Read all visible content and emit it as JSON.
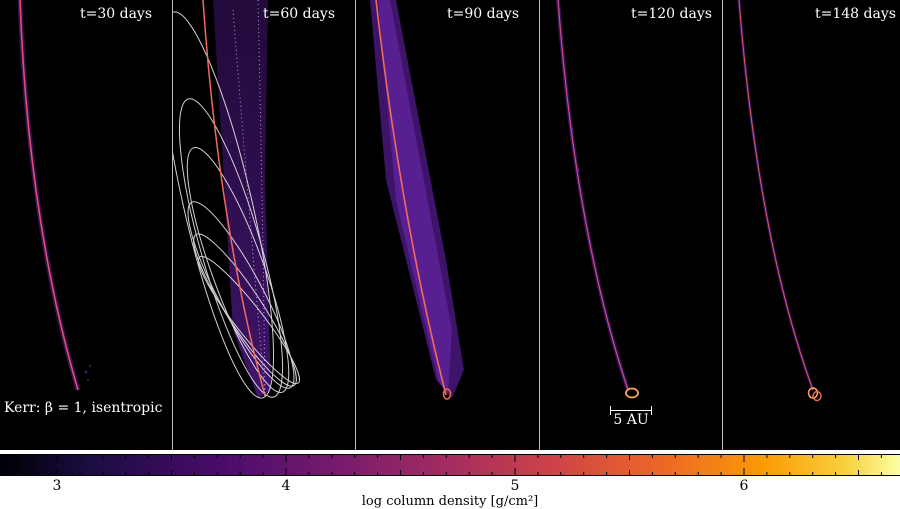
{
  "panels": [
    {
      "label": "t=30 days"
    },
    {
      "label": "t=60 days"
    },
    {
      "label": "t=90 days"
    },
    {
      "label": "t=120 days"
    },
    {
      "label": "t=148 days"
    }
  ],
  "run_label": "Kerr: β = 1, isentropic",
  "scale_bar": {
    "label": "5 AU"
  },
  "colorbar": {
    "axis_label": "log column density [g/cm²]",
    "ticks": [
      "3",
      "4",
      "5",
      "6"
    ],
    "min": 2.75,
    "max": 6.7,
    "colormap": "inferno-like (black-purple-magenta-orange-yellow)"
  },
  "colors": {
    "stream_core": "#f26a5c",
    "stream_halo": "#7a2cc4",
    "orbit_lines": "#e8e8e8"
  }
}
